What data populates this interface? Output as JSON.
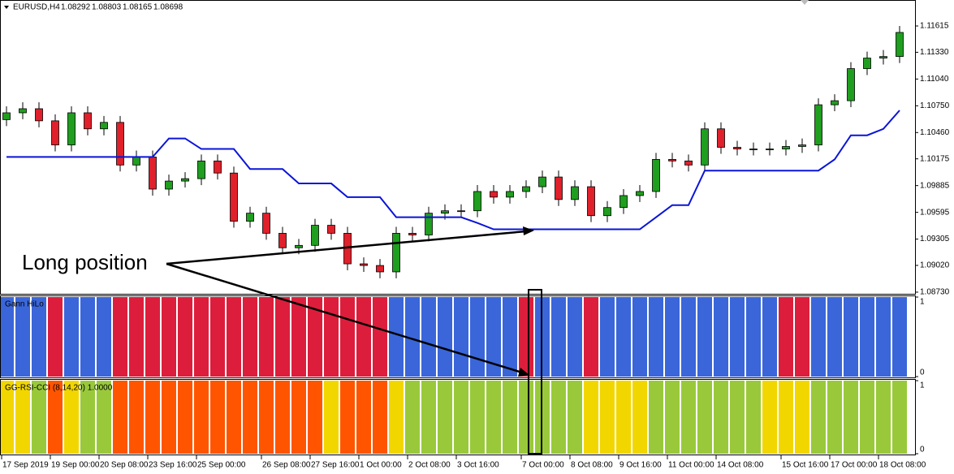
{
  "header": {
    "title": "EURUSD,H4",
    "ohlc": [
      1.08292,
      1.08803,
      1.08165,
      1.08698
    ]
  },
  "chart_data": [
    {
      "type": "candlestick",
      "annotation": "Long position",
      "categories": [
        "17 Sep 2019",
        null,
        null,
        "19 Sep 00:00",
        null,
        null,
        "20 Sep 08:00",
        null,
        null,
        "23 Sep 16:00",
        null,
        null,
        "25 Sep 00:00",
        null,
        null,
        null,
        "26 Sep 08:00",
        null,
        null,
        "27 Sep 16:00",
        null,
        null,
        "1 Oct 00:00",
        null,
        null,
        "2 Oct 08:00",
        null,
        null,
        "3 Oct 16:00",
        null,
        null,
        null,
        "7 Oct 00:00",
        null,
        null,
        "8 Oct 08:00",
        null,
        null,
        "9 Oct 16:00",
        null,
        null,
        "11 Oct 00:00",
        null,
        null,
        "14 Oct 08:00",
        null,
        null,
        null,
        "15 Oct 16:00",
        null,
        null,
        "17 Oct 00:00",
        null,
        null,
        "18 Oct 08:00",
        null
      ],
      "open": [
        1.106,
        1.10674,
        1.10718,
        1.10587,
        1.10326,
        1.10674,
        1.105,
        1.1057,
        1.10108,
        1.10195,
        1.09847,
        1.09934,
        1.0996,
        1.10152,
        1.10021,
        1.09499,
        1.09586,
        1.09368,
        1.09211,
        1.09237,
        1.09455,
        1.09368,
        1.09037,
        1.09019,
        1.0895,
        1.09368,
        1.0935,
        1.09586,
        1.09612,
        1.09612,
        1.09821,
        1.0976,
        1.09821,
        1.09873,
        1.09978,
        1.09734,
        1.09873,
        1.09559,
        1.09647,
        1.09777,
        1.09821,
        1.10169,
        1.10152,
        1.10108,
        1.105,
        1.103,
        1.10282,
        1.10282,
        1.10282,
        1.10309,
        1.10326,
        1.10761,
        1.10805,
        1.11153,
        1.11267,
        1.11284
      ],
      "high": [
        1.10744,
        1.10788,
        1.10788,
        1.10657,
        1.10744,
        1.10744,
        1.1064,
        1.1064,
        1.10265,
        1.10265,
        1.10004,
        1.1003,
        1.10222,
        1.10222,
        1.10091,
        1.09656,
        1.09656,
        1.09438,
        1.09307,
        1.09525,
        1.09525,
        1.09438,
        1.09107,
        1.09089,
        1.09438,
        1.09438,
        1.09656,
        1.09682,
        1.09682,
        1.09891,
        1.09891,
        1.09891,
        1.09943,
        1.10048,
        1.10048,
        1.09943,
        1.09943,
        1.09717,
        1.09847,
        1.09891,
        1.10239,
        1.10239,
        1.10222,
        1.1057,
        1.1057,
        1.1037,
        1.10352,
        1.10352,
        1.10379,
        1.10396,
        1.10831,
        1.10875,
        1.11223,
        1.11337,
        1.11354,
        1.11615
      ],
      "low": [
        1.1053,
        1.10604,
        1.10517,
        1.10256,
        1.10256,
        1.1043,
        1.1043,
        1.10038,
        1.10038,
        1.09777,
        1.09777,
        1.09864,
        1.0989,
        1.09951,
        1.09429,
        1.09429,
        1.09298,
        1.09141,
        1.09141,
        1.09167,
        1.09298,
        1.08967,
        1.08949,
        1.0888,
        1.0888,
        1.0928,
        1.0928,
        1.09516,
        1.09542,
        1.09542,
        1.0969,
        1.0969,
        1.09751,
        1.09803,
        1.09664,
        1.09664,
        1.09489,
        1.09489,
        1.09577,
        1.09707,
        1.09751,
        1.10082,
        1.10038,
        1.10038,
        1.1023,
        1.10212,
        1.10212,
        1.10212,
        1.10212,
        1.10239,
        1.10256,
        1.10691,
        1.10735,
        1.11083,
        1.11197,
        1.11214
      ],
      "close": [
        1.10674,
        1.10718,
        1.10587,
        1.10326,
        1.10674,
        1.105,
        1.1057,
        1.10108,
        1.10195,
        1.09847,
        1.09934,
        1.0996,
        1.10152,
        1.10021,
        1.09499,
        1.09586,
        1.09368,
        1.09211,
        1.09237,
        1.09455,
        1.09368,
        1.09037,
        1.09019,
        1.0895,
        1.09368,
        1.0935,
        1.09586,
        1.09612,
        1.09612,
        1.09821,
        1.0976,
        1.09821,
        1.09873,
        1.09978,
        1.09734,
        1.09873,
        1.09559,
        1.09647,
        1.09777,
        1.09821,
        1.10169,
        1.10152,
        1.10108,
        1.105,
        1.103,
        1.10282,
        1.10282,
        1.10282,
        1.10309,
        1.10326,
        1.10761,
        1.10805,
        1.11153,
        1.11267,
        1.11284,
        1.11545
      ],
      "up_color": "#1f9e1f",
      "down_color": "#e0202a",
      "line": {
        "color": "#0a14d8",
        "values": [
          1.10195,
          1.10195,
          1.10195,
          1.10195,
          1.10195,
          1.10195,
          1.10195,
          1.10195,
          1.10195,
          1.10195,
          1.10396,
          1.10396,
          1.10282,
          1.10282,
          1.10282,
          1.10065,
          1.10065,
          1.10065,
          1.09908,
          1.09908,
          1.09908,
          1.0976,
          1.0976,
          1.0976,
          1.09542,
          1.09542,
          1.09542,
          1.09542,
          1.09542,
          1.0948,
          1.09411,
          1.09411,
          1.09411,
          1.09411,
          1.09411,
          1.09411,
          1.09411,
          1.09411,
          1.09411,
          1.09411,
          1.09542,
          1.09673,
          1.09673,
          1.10047,
          1.10047,
          1.10047,
          1.10047,
          1.10047,
          1.10047,
          1.10047,
          1.10047,
          1.10169,
          1.1043,
          1.1043,
          1.105,
          1.107
        ]
      },
      "ylim": [
        1.08712,
        1.11879
      ],
      "yticks": [
        1.11615,
        {
          "value": 1.1133,
          "label": "1.11330"
        },
        {
          "value": 1.1104,
          "label": "1.11040"
        },
        {
          "value": 1.1075,
          "label": "1.10750"
        },
        {
          "value": 1.1046,
          "label": "1.10460"
        },
        1.10175,
        1.09885,
        1.09595,
        1.09305,
        {
          "value": 1.0902,
          "label": "1.09020"
        },
        {
          "value": 1.0873,
          "label": "1.08730"
        }
      ]
    },
    {
      "type": "bar",
      "title": "Gann HiLo",
      "ylim": [
        0,
        1
      ],
      "yticks": [
        1,
        0
      ],
      "values": [
        1,
        1,
        1,
        1,
        1,
        1,
        1,
        1,
        1,
        1,
        1,
        1,
        1,
        1,
        1,
        1,
        1,
        1,
        1,
        1,
        1,
        1,
        1,
        1,
        1,
        1,
        1,
        1,
        1,
        1,
        1,
        1,
        1,
        1,
        1,
        1,
        1,
        1,
        1,
        1,
        1,
        1,
        1,
        1,
        1,
        1,
        1,
        1,
        1,
        1,
        1,
        1,
        1,
        1,
        1,
        1
      ],
      "colors": [
        "#3a66d9",
        "#3a66d9",
        "#3a66d9",
        "#dc1e3c",
        "#3a66d9",
        "#3a66d9",
        "#3a66d9",
        "#dc1e3c",
        "#dc1e3c",
        "#dc1e3c",
        "#dc1e3c",
        "#dc1e3c",
        "#dc1e3c",
        "#dc1e3c",
        "#dc1e3c",
        "#dc1e3c",
        "#dc1e3c",
        "#dc1e3c",
        "#dc1e3c",
        "#dc1e3c",
        "#dc1e3c",
        "#dc1e3c",
        "#dc1e3c",
        "#dc1e3c",
        "#3a66d9",
        "#3a66d9",
        "#3a66d9",
        "#3a66d9",
        "#3a66d9",
        "#3a66d9",
        "#3a66d9",
        "#3a66d9",
        "#dc1e3c",
        "#3a66d9",
        "#3a66d9",
        "#3a66d9",
        "#dc1e3c",
        "#3a66d9",
        "#3a66d9",
        "#3a66d9",
        "#3a66d9",
        "#3a66d9",
        "#3a66d9",
        "#3a66d9",
        "#3a66d9",
        "#3a66d9",
        "#3a66d9",
        "#3a66d9",
        "#dc1e3c",
        "#dc1e3c",
        "#3a66d9",
        "#3a66d9",
        "#3a66d9",
        "#3a66d9",
        "#3a66d9",
        "#3a66d9"
      ]
    },
    {
      "type": "bar",
      "title": "GG-RSI-CCI (8,14,20) 1.0000",
      "ylim": [
        0,
        1
      ],
      "yticks": [
        1,
        0
      ],
      "values": [
        1,
        1,
        1,
        1,
        1,
        1,
        1,
        1,
        1,
        1,
        1,
        1,
        1,
        1,
        1,
        1,
        1,
        1,
        1,
        1,
        1,
        1,
        1,
        1,
        1,
        1,
        1,
        1,
        1,
        1,
        1,
        1,
        1,
        1,
        1,
        1,
        1,
        1,
        1,
        1,
        1,
        1,
        1,
        1,
        1,
        1,
        1,
        1,
        1,
        1,
        1,
        1,
        1,
        1,
        1,
        1
      ],
      "colors": [
        "#f2d600",
        "#f2d600",
        "#99c93a",
        "#ff5500",
        "#f2d600",
        "#99c93a",
        "#99c93a",
        "#ff5500",
        "#ff5500",
        "#ff5500",
        "#ff5500",
        "#ff5500",
        "#ff5500",
        "#ff5500",
        "#ff5500",
        "#ff5500",
        "#ff5500",
        "#ff5500",
        "#ff5500",
        "#ff5500",
        "#f2d600",
        "#ff5500",
        "#ff5500",
        "#ff5500",
        "#f2d600",
        "#99c93a",
        "#99c93a",
        "#99c93a",
        "#99c93a",
        "#99c93a",
        "#99c93a",
        "#99c93a",
        "#99c93a",
        "#99c93a",
        "#99c93a",
        "#99c93a",
        "#f2d600",
        "#f2d600",
        "#f2d600",
        "#f2d600",
        "#99c93a",
        "#99c93a",
        "#99c93a",
        "#99c93a",
        "#99c93a",
        "#99c93a",
        "#99c93a",
        "#f2d600",
        "#f2d600",
        "#f2d600",
        "#99c93a",
        "#99c93a",
        "#99c93a",
        "#99c93a",
        "#99c93a",
        "#99c93a"
      ]
    }
  ]
}
